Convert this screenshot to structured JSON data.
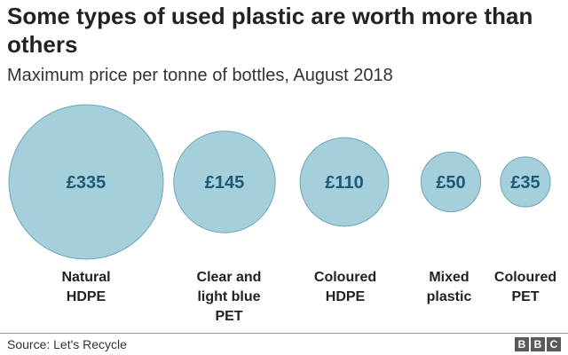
{
  "title": "Some types of used plastic are worth more than others",
  "subtitle": "Maximum price per tonne of bottles, August 2018",
  "source": "Source: Let's Recycle",
  "logo_letters": [
    "B",
    "B",
    "C"
  ],
  "colors": {
    "bubble_fill": "#a6cfdc",
    "bubble_stroke": "#6fa3b6",
    "value_label": "#1d5a78"
  },
  "chart_data": {
    "type": "bubble",
    "title": "Some types of used plastic are worth more than others",
    "subtitle": "Maximum price per tonne of bottles, August 2018",
    "unit": "£ per tonne",
    "categories": [
      "Natural HDPE",
      "Clear and light blue PET",
      "Coloured HDPE",
      "Mixed plastic",
      "Coloured PET"
    ],
    "category_lines": [
      [
        "Natural",
        "HDPE"
      ],
      [
        "Clear and",
        "light blue",
        "PET"
      ],
      [
        "Coloured",
        "HDPE"
      ],
      [
        "Mixed",
        "plastic"
      ],
      [
        "Coloured",
        "PET"
      ]
    ],
    "values": [
      335,
      145,
      110,
      50,
      35
    ],
    "value_labels": [
      "£335",
      "£145",
      "£110",
      "£50",
      "£35"
    ]
  }
}
